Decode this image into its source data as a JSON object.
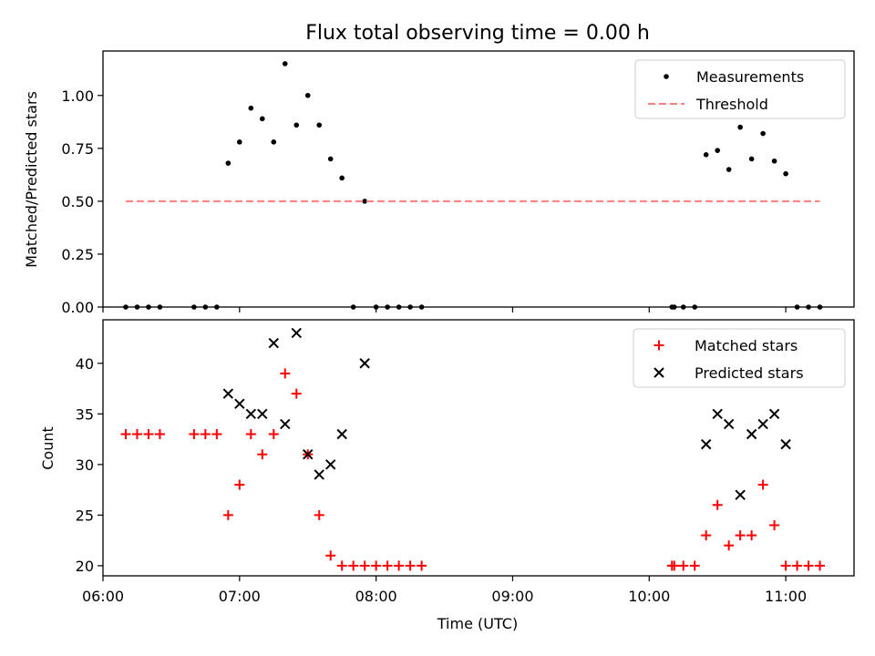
{
  "chart_data": [
    {
      "type": "scatter",
      "title": "Flux total observing time = 0.00 h",
      "xlabel": "",
      "ylabel": "Matched/Predicted stars",
      "ylim": [
        0,
        1.21
      ],
      "yticks": [
        0.0,
        0.25,
        0.5,
        0.75,
        1.0
      ],
      "ytick_labels": [
        "0.00",
        "0.25",
        "0.50",
        "0.75",
        "1.00"
      ],
      "legend_placement": "top-right",
      "series": [
        {
          "name": "Measurements",
          "style": "dot",
          "color": "#000000",
          "points": [
            [
              "06:10",
              0
            ],
            [
              "06:15",
              0
            ],
            [
              "06:20",
              0
            ],
            [
              "06:25",
              0
            ],
            [
              "06:40",
              0
            ],
            [
              "06:45",
              0
            ],
            [
              "06:50",
              0
            ],
            [
              "06:55",
              0.68
            ],
            [
              "07:00",
              0.78
            ],
            [
              "07:05",
              0.94
            ],
            [
              "07:10",
              0.89
            ],
            [
              "07:15",
              0.78
            ],
            [
              "07:20",
              1.15
            ],
            [
              "07:25",
              0.86
            ],
            [
              "07:30",
              1.0
            ],
            [
              "07:35",
              0.86
            ],
            [
              "07:40",
              0.7
            ],
            [
              "07:45",
              0.61
            ],
            [
              "07:50",
              0
            ],
            [
              "07:55",
              0.5
            ],
            [
              "08:00",
              0
            ],
            [
              "08:05",
              0
            ],
            [
              "08:10",
              0
            ],
            [
              "08:15",
              0
            ],
            [
              "08:20",
              0
            ],
            [
              "10:10",
              0
            ],
            [
              "10:11",
              0
            ],
            [
              "10:15",
              0
            ],
            [
              "10:20",
              0
            ],
            [
              "10:25",
              0.72
            ],
            [
              "10:30",
              0.74
            ],
            [
              "10:35",
              0.65
            ],
            [
              "10:40",
              0.85
            ],
            [
              "10:45",
              0.7
            ],
            [
              "10:50",
              0.82
            ],
            [
              "10:55",
              0.69
            ],
            [
              "11:00",
              0.63
            ],
            [
              "11:05",
              0
            ],
            [
              "11:10",
              0
            ],
            [
              "11:15",
              0
            ]
          ]
        },
        {
          "name": "Threshold",
          "style": "dashed-line",
          "color": "#ff7f7f",
          "points": [
            [
              "06:10",
              0.5
            ],
            [
              "11:15",
              0.5
            ]
          ]
        }
      ]
    },
    {
      "type": "scatter",
      "title": "",
      "xlabel": "Time (UTC)",
      "ylabel": "Count",
      "ylim": [
        19,
        44.3
      ],
      "yticks": [
        20,
        25,
        30,
        35,
        40
      ],
      "ytick_labels": [
        "20",
        "25",
        "30",
        "35",
        "40"
      ],
      "xlim": [
        "06:00",
        "11:30"
      ],
      "xticks": [
        "06:00",
        "07:00",
        "08:00",
        "09:00",
        "10:00",
        "11:00"
      ],
      "legend_placement": "top-right",
      "series": [
        {
          "name": "Matched stars",
          "style": "plus",
          "color": "#ff0000",
          "points": [
            [
              "06:10",
              33
            ],
            [
              "06:15",
              33
            ],
            [
              "06:20",
              33
            ],
            [
              "06:25",
              33
            ],
            [
              "06:40",
              33
            ],
            [
              "06:45",
              33
            ],
            [
              "06:50",
              33
            ],
            [
              "06:55",
              25
            ],
            [
              "07:00",
              28
            ],
            [
              "07:05",
              33
            ],
            [
              "07:10",
              31
            ],
            [
              "07:15",
              33
            ],
            [
              "07:20",
              39
            ],
            [
              "07:25",
              37
            ],
            [
              "07:30",
              31
            ],
            [
              "07:35",
              25
            ],
            [
              "07:40",
              21
            ],
            [
              "07:45",
              20
            ],
            [
              "07:50",
              20
            ],
            [
              "07:55",
              20
            ],
            [
              "08:00",
              20
            ],
            [
              "08:05",
              20
            ],
            [
              "08:10",
              20
            ],
            [
              "08:15",
              20
            ],
            [
              "08:20",
              20
            ],
            [
              "10:10",
              20
            ],
            [
              "10:11",
              20
            ],
            [
              "10:15",
              20
            ],
            [
              "10:20",
              20
            ],
            [
              "10:25",
              23
            ],
            [
              "10:30",
              26
            ],
            [
              "10:35",
              22
            ],
            [
              "10:40",
              23
            ],
            [
              "10:45",
              23
            ],
            [
              "10:50",
              28
            ],
            [
              "10:55",
              24
            ],
            [
              "11:00",
              20
            ],
            [
              "11:05",
              20
            ],
            [
              "11:10",
              20
            ],
            [
              "11:15",
              20
            ]
          ]
        },
        {
          "name": "Predicted stars",
          "style": "x",
          "color": "#000000",
          "points": [
            [
              "06:55",
              37
            ],
            [
              "07:00",
              36
            ],
            [
              "07:05",
              35
            ],
            [
              "07:10",
              35
            ],
            [
              "07:15",
              42
            ],
            [
              "07:20",
              34
            ],
            [
              "07:25",
              43
            ],
            [
              "07:30",
              31
            ],
            [
              "07:35",
              29
            ],
            [
              "07:40",
              30
            ],
            [
              "07:45",
              33
            ],
            [
              "07:55",
              40
            ],
            [
              "10:25",
              32
            ],
            [
              "10:30",
              35
            ],
            [
              "10:35",
              34
            ],
            [
              "10:40",
              27
            ],
            [
              "10:45",
              33
            ],
            [
              "10:50",
              34
            ],
            [
              "10:55",
              35
            ],
            [
              "11:00",
              32
            ]
          ]
        }
      ]
    }
  ]
}
